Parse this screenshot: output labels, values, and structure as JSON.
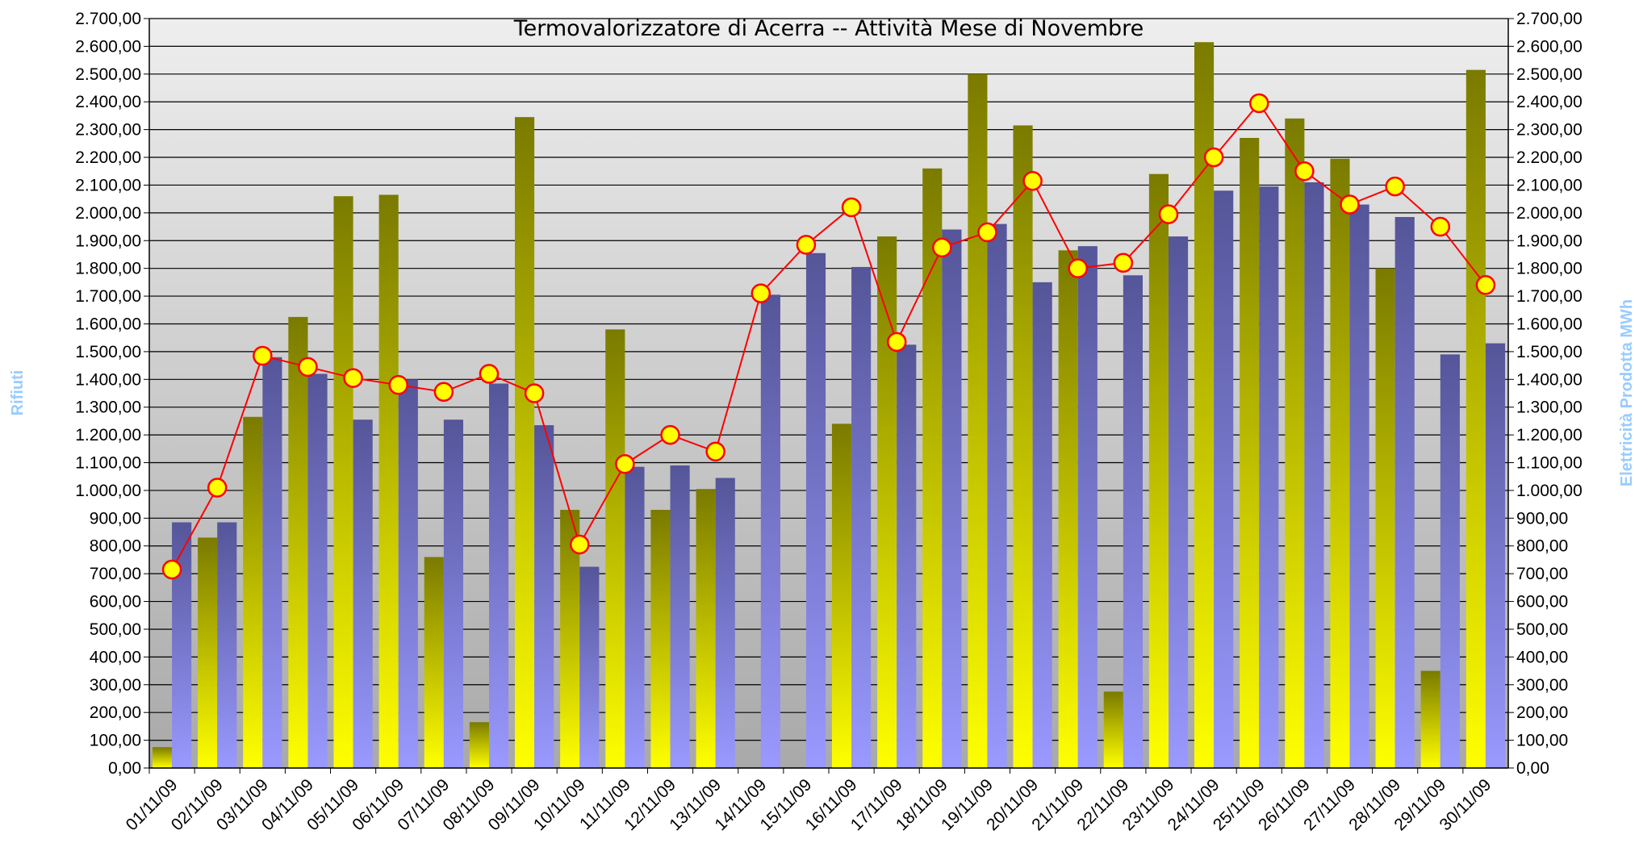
{
  "chart_data": {
    "type": "bar-line",
    "title": "Termovalorizzatore di Acerra -- Attività Mese di Novembre",
    "y_label": "Rifiuti",
    "y2_label": "Elettricità Prodotta MWh",
    "categories": [
      "01/11/09",
      "02/11/09",
      "03/11/09",
      "04/11/09",
      "05/11/09",
      "06/11/09",
      "07/11/09",
      "08/11/09",
      "09/11/09",
      "10/11/09",
      "11/11/09",
      "12/11/09",
      "13/11/09",
      "14/11/09",
      "15/11/09",
      "16/11/09",
      "17/11/09",
      "18/11/09",
      "19/11/09",
      "20/11/09",
      "21/11/09",
      "22/11/09",
      "23/11/09",
      "24/11/09",
      "25/11/09",
      "26/11/09",
      "27/11/09",
      "28/11/09",
      "29/11/09",
      "30/11/09"
    ],
    "series": [
      {
        "kind": "bar",
        "color": "#ffff00",
        "values": [
          75,
          830,
          1265,
          1625,
          2060,
          2065,
          760,
          165,
          2345,
          930,
          1580,
          930,
          1005,
          0,
          0,
          1240,
          1915,
          2160,
          2500,
          2315,
          1865,
          275,
          2140,
          2615,
          2270,
          2340,
          2195,
          1800,
          350,
          2515
        ]
      },
      {
        "kind": "bar",
        "color": "#9999ff",
        "values": [
          885,
          885,
          1480,
          1420,
          1255,
          1400,
          1255,
          1385,
          1235,
          725,
          1085,
          1090,
          1045,
          1705,
          1855,
          1805,
          1525,
          1940,
          1960,
          1750,
          1880,
          1775,
          1915,
          2080,
          2095,
          2110,
          2030,
          1985,
          1490,
          1530
        ]
      },
      {
        "kind": "line",
        "axis": "y2",
        "color": "#ff0000",
        "marker_color": "#ffff00",
        "values": [
          715,
          1010,
          1485,
          1445,
          1405,
          1380,
          1355,
          1420,
          1350,
          805,
          1095,
          1200,
          1140,
          1710,
          1885,
          2020,
          1535,
          1875,
          1930,
          2115,
          1800,
          1820,
          1995,
          2200,
          2395,
          2150,
          2030,
          2095,
          1950,
          1740
        ]
      }
    ],
    "ylim": [
      0,
      2700
    ],
    "y2lim": [
      0,
      2700
    ],
    "grid": true,
    "yticks": [
      {
        "value": 0,
        "label": "0,00"
      },
      {
        "value": 100,
        "label": "100,00"
      },
      {
        "value": 200,
        "label": "200,00"
      },
      {
        "value": 300,
        "label": "300,00"
      },
      {
        "value": 400,
        "label": "400,00"
      },
      {
        "value": 500,
        "label": "500,00"
      },
      {
        "value": 600,
        "label": "600,00"
      },
      {
        "value": 700,
        "label": "700,00"
      },
      {
        "value": 800,
        "label": "800,00"
      },
      {
        "value": 900,
        "label": "900,00"
      },
      {
        "value": 1000,
        "label": "1.000,00"
      },
      {
        "value": 1100,
        "label": "1.100,00"
      },
      {
        "value": 1200,
        "label": "1.200,00"
      },
      {
        "value": 1300,
        "label": "1.300,00"
      },
      {
        "value": 1400,
        "label": "1.400,00"
      },
      {
        "value": 1500,
        "label": "1.500,00"
      },
      {
        "value": 1600,
        "label": "1.600,00"
      },
      {
        "value": 1700,
        "label": "1.700,00"
      },
      {
        "value": 1800,
        "label": "1.800,00"
      },
      {
        "value": 1900,
        "label": "1.900,00"
      },
      {
        "value": 2000,
        "label": "2.000,00"
      },
      {
        "value": 2100,
        "label": "2.100,00"
      },
      {
        "value": 2200,
        "label": "2.200,00"
      },
      {
        "value": 2300,
        "label": "2.300,00"
      },
      {
        "value": 2400,
        "label": "2.400,00"
      },
      {
        "value": 2500,
        "label": "2.500,00"
      },
      {
        "value": 2600,
        "label": "2.600,00"
      },
      {
        "value": 2700,
        "label": "2.700,00"
      }
    ],
    "y2ticks": [
      {
        "value": 0,
        "label": "0,00"
      },
      {
        "value": 100,
        "label": "100,00"
      },
      {
        "value": 200,
        "label": "200,00"
      },
      {
        "value": 300,
        "label": "300,00"
      },
      {
        "value": 400,
        "label": "400,00"
      },
      {
        "value": 500,
        "label": "500,00"
      },
      {
        "value": 600,
        "label": "600,00"
      },
      {
        "value": 700,
        "label": "700,00"
      },
      {
        "value": 800,
        "label": "800,00"
      },
      {
        "value": 900,
        "label": "900,00"
      },
      {
        "value": 1000,
        "label": "1.000,00"
      },
      {
        "value": 1100,
        "label": "1.100,00"
      },
      {
        "value": 1200,
        "label": "1.200,00"
      },
      {
        "value": 1300,
        "label": "1.300,00"
      },
      {
        "value": 1400,
        "label": "1.400,00"
      },
      {
        "value": 1500,
        "label": "1.500,00"
      },
      {
        "value": 1600,
        "label": "1.600,00"
      },
      {
        "value": 1700,
        "label": "1.700,00"
      },
      {
        "value": 1800,
        "label": "1.800,00"
      },
      {
        "value": 1900,
        "label": "1.900,00"
      },
      {
        "value": 2000,
        "label": "2.000,00"
      },
      {
        "value": 2100,
        "label": "2.100,00"
      },
      {
        "value": 2200,
        "label": "2.200,00"
      },
      {
        "value": 2300,
        "label": "2.300,00"
      },
      {
        "value": 2400,
        "label": "2.400,00"
      },
      {
        "value": 2500,
        "label": "2.500,00"
      },
      {
        "value": 2600,
        "label": "2.600,00"
      },
      {
        "value": 2700,
        "label": "2.700,00"
      }
    ]
  }
}
